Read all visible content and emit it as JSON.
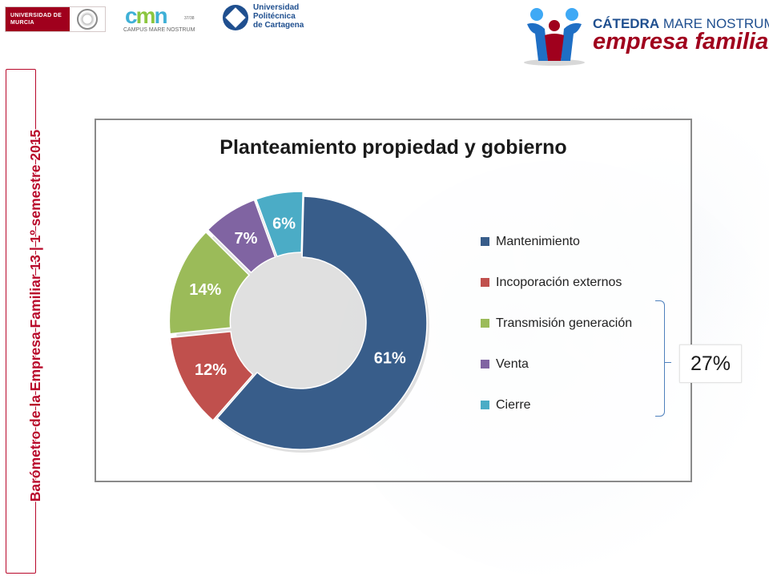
{
  "header": {
    "logo_um": "UNIVERSIDAD DE MURCIA",
    "logo_cmn": "CAMPUS MARE NOSTRUM",
    "logo_cmn_sub": "37/38",
    "logo_upct": "Universidad Politécnica de Cartagena",
    "catedra_line1_bold": "CÁTEDRA",
    "catedra_line1_rest": " MARE NOSTRUM",
    "catedra_line2": "empresa familiar"
  },
  "side_title": "Barómetro de la Empresa Familiar 13 | 1º semestre 2015",
  "callout_value": "27%",
  "chart_data": {
    "type": "pie",
    "title": "Planteamiento propiedad y gobierno",
    "donut": true,
    "categories": [
      "Mantenimiento",
      "Incoporación externos",
      "Transmisión generación",
      "Venta",
      "Cierre"
    ],
    "values": [
      61,
      12,
      14,
      7,
      6
    ],
    "labels": [
      "61%",
      "12%",
      "14%",
      "7%",
      "6%"
    ],
    "colors": [
      "#385d8a",
      "#c0504d",
      "#9bbb59",
      "#8064a2",
      "#4bacc6"
    ],
    "legend_position": "right"
  }
}
